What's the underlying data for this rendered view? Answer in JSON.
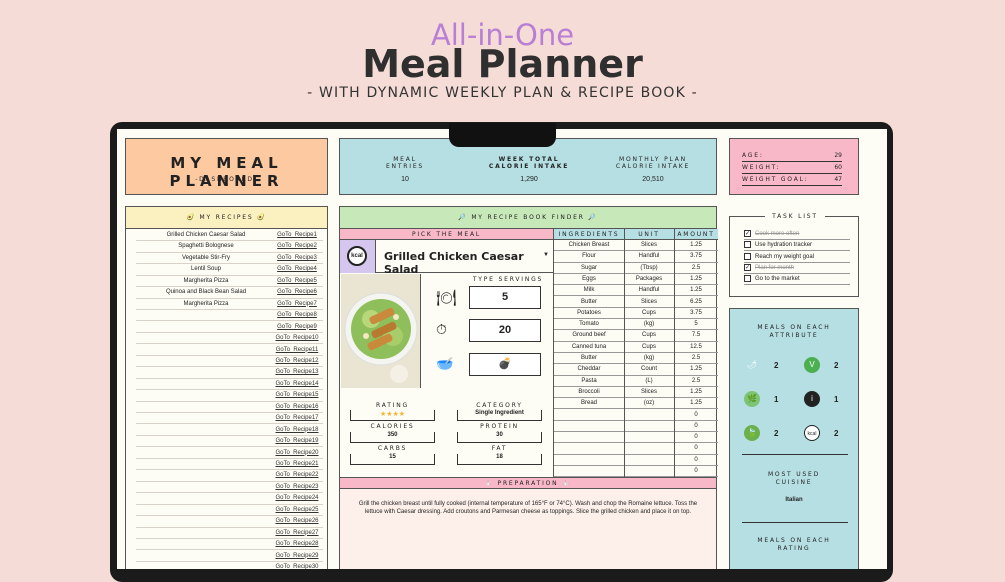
{
  "header": {
    "line1": "All-in-One",
    "line2": "Meal Planner",
    "line3": "- WITH DYNAMIC WEEKLY PLAN & RECIPE BOOK -"
  },
  "title_box": {
    "title": "MY MEAL PLANNER",
    "subtitle": "-DASHBOARD-"
  },
  "stats": {
    "meal_entries_label1": "MEAL",
    "meal_entries_label2": "ENTRIES",
    "meal_entries": "10",
    "week_total_label1": "WEEK TOTAL",
    "week_total_label2": "CALORIE INTAKE",
    "week_total": "1,290",
    "monthly_label1": "MONTHLY PLAN",
    "monthly_label2": "CALORIE INTAKE",
    "monthly": "20,510"
  },
  "profile": {
    "age_label": "AGE:",
    "age": "29",
    "weight_label": "WEIGHT:",
    "weight": "60",
    "goal_label": "WEIGHT GOAL:",
    "goal": "47"
  },
  "recipes": {
    "title": "MY RECIPES",
    "names": [
      "Grilled Chicken Caesar Salad",
      "Spaghetti Bolognese",
      "Vegetable Stir-Fry",
      "Lentil Soup",
      "Margherita Pizza",
      "Quinoa and Black Bean Salad",
      "Margherita Pizza",
      "",
      "",
      "",
      "",
      "",
      "",
      "",
      "",
      "",
      "",
      "",
      "",
      "",
      "",
      "",
      "",
      "",
      "",
      "",
      "",
      "",
      "",
      ""
    ],
    "links": [
      "GoTo_Recipe1",
      "GoTo_Recipe2",
      "GoTo_Recipe3",
      "GoTo_Recipe4",
      "GoTo_Recipe5",
      "GoTo_Recipe6",
      "GoTo_Recipe7",
      "GoTo_Recipe8",
      "GoTo_Recipe9",
      "GoTo_Recipe10",
      "GoTo_Recipe11",
      "GoTo_Recipe12",
      "GoTo_Recipe13",
      "GoTo_Recipe14",
      "GoTo_Recipe15",
      "GoTo_Recipe16",
      "GoTo_Recipe17",
      "GoTo_Recipe18",
      "GoTo_Recipe19",
      "GoTo_Recipe20",
      "GoTo_Recipe21",
      "GoTo_Recipe22",
      "GoTo_Recipe23",
      "GoTo_Recipe24",
      "GoTo_Recipe25",
      "GoTo_Recipe26",
      "GoTo_Recipe27",
      "GoTo_Recipe28",
      "GoTo_Recipe29",
      "GoTo_Recipe30"
    ]
  },
  "finder": {
    "title": "MY RECIPE BOOK FINDER",
    "pick_label": "PICK THE MEAL",
    "selected_meal": "Grilled Chicken Caesar Salad",
    "type_label": "TYPE",
    "servings_label": "SERVINGS",
    "servings": "5",
    "time": "20",
    "rating_label": "RATING",
    "rating_stars": "★★★★",
    "category_label": "CATEGORY",
    "category": "Single Ingredient",
    "calories_label": "CALORIES",
    "calories": "350",
    "protein_label": "PROTEIN",
    "protein": "30",
    "carbs_label": "CARBS",
    "carbs": "15",
    "fat_label": "FAT",
    "fat": "18",
    "preparation_label": "PREPARATION",
    "preparation": "Grill the chicken breast until fully cooked (internal temperature of 165°F or 74°C). Wash and chop the Romaine lettuce. Toss the lettuce with Caesar dressing. Add croutons and Parmesan cheese as toppings. Slice the grilled chicken and place it on top."
  },
  "ingredients": {
    "headers": [
      "INGREDIENTS",
      "UNIT",
      "AMOUNT"
    ],
    "rows": [
      [
        "Chicken Breast",
        "Slices",
        "1.25"
      ],
      [
        "Flour",
        "Handful",
        "3.75"
      ],
      [
        "Sugar",
        "(Tbsp)",
        "2.5"
      ],
      [
        "Eggs",
        "Packages",
        "1.25"
      ],
      [
        "Milk",
        "Handful",
        "1.25"
      ],
      [
        "Butter",
        "Slices",
        "6.25"
      ],
      [
        "Potatoes",
        "Cups",
        "3.75"
      ],
      [
        "Tomato",
        "(kg)",
        "5"
      ],
      [
        "Ground beef",
        "Cups",
        "7.5"
      ],
      [
        "Canned tuna",
        "Cups",
        "12.5"
      ],
      [
        "Butter",
        "(kg)",
        "2.5"
      ],
      [
        "Cheddar",
        "Count",
        "1.25"
      ],
      [
        "Pasta",
        "(L)",
        "2.5"
      ],
      [
        "Broccoli",
        "Slices",
        "1.25"
      ],
      [
        "Bread",
        "(oz)",
        "1.25"
      ],
      [
        "",
        "",
        "0"
      ],
      [
        "",
        "",
        "0"
      ],
      [
        "",
        "",
        "0"
      ],
      [
        "",
        "",
        "0"
      ],
      [
        "",
        "",
        "0"
      ],
      [
        "",
        "",
        "0"
      ]
    ]
  },
  "tasks": {
    "title": "TASK LIST",
    "items": [
      {
        "text": "Cook more often",
        "done": true
      },
      {
        "text": "Use hydration tracker",
        "done": false
      },
      {
        "text": "Reach my weight goal",
        "done": false
      },
      {
        "text": "Plan for month",
        "done": true
      },
      {
        "text": "Go to the market",
        "done": false
      }
    ]
  },
  "meals_attr": {
    "title1": "MEALS ON EACH",
    "title2": "ATTRIBUTE",
    "counts": [
      "2",
      "2",
      "1",
      "1",
      "2",
      "2"
    ],
    "icons": [
      "chili-icon",
      "vegan-icon",
      "leaf-icon",
      "info-icon",
      "organic-icon",
      "kcal-icon"
    ],
    "cuisine_label1": "MOST USED",
    "cuisine_label2": "CUISINE",
    "cuisine": "Italian",
    "rating_label1": "MEALS ON EACH",
    "rating_label2": "RATING"
  },
  "colors": {
    "bg": "#f6dcd7",
    "peach": "#fdc9a1",
    "blue": "#b6dfe3",
    "pink": "#f9b8c8",
    "yellow": "#fbf1c0",
    "green": "#c7e8b8"
  }
}
